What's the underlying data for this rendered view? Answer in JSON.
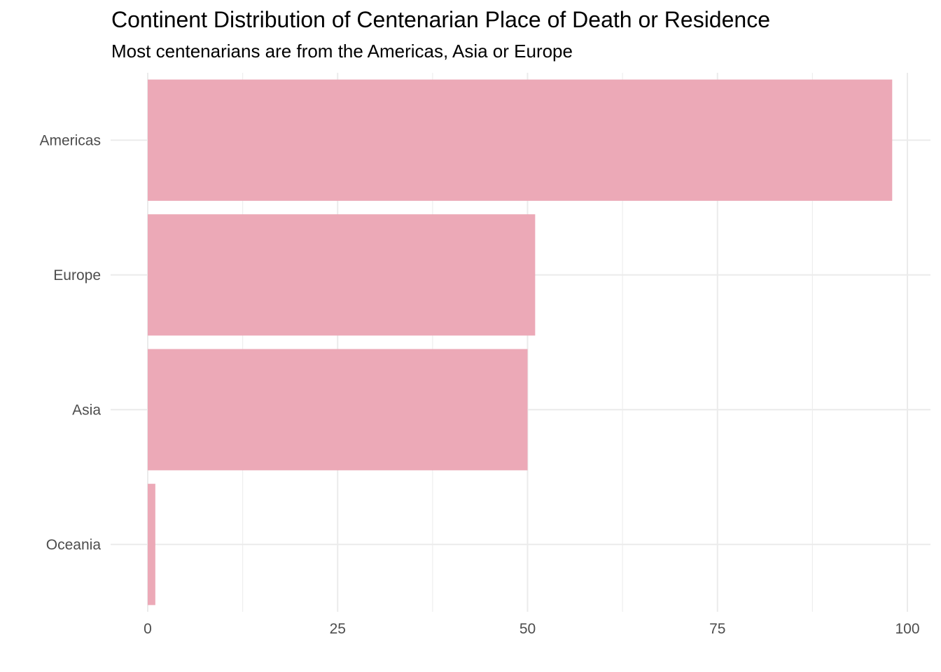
{
  "chart_data": {
    "type": "bar",
    "orientation": "horizontal",
    "title": "Continent Distribution of Centenarian Place of Death or Residence",
    "subtitle": "Most centenarians are from the Americas, Asia or Europe",
    "xlabel": "",
    "ylabel": "",
    "categories": [
      "Americas",
      "Europe",
      "Asia",
      "Oceania"
    ],
    "values": [
      98,
      51,
      50,
      1
    ],
    "xlim": [
      0,
      100
    ],
    "x_ticks": [
      0,
      25,
      50,
      75,
      100
    ],
    "grid": true,
    "legend": "none",
    "bar_color": "#ECA9B7",
    "grid_color": "#EBEBEB",
    "text_color": "#4D4D4D"
  }
}
